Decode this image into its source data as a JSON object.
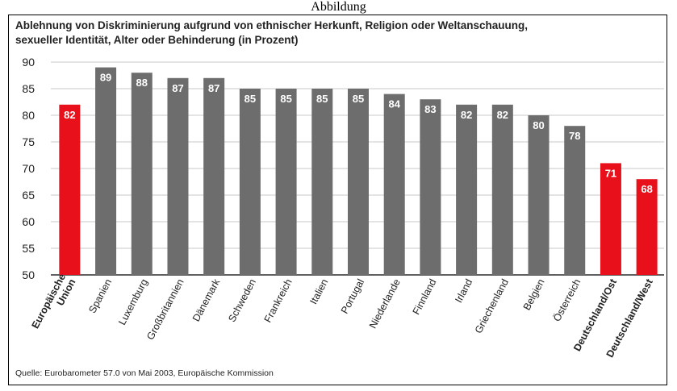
{
  "page": {
    "caption": "Abbildung"
  },
  "chart_data": {
    "type": "bar",
    "title_lines": [
      "Ablehnung von Diskriminierung aufgrund von ethnischer Herkunft, Religion oder Weltanschauung,",
      "sexueller Identität, Alter oder Behinderung (in Prozent)"
    ],
    "categories": [
      "Europäische Union",
      "Spanien",
      "Luxemburg",
      "Großbritannien",
      "Dänemark",
      "Schweden",
      "Frankreich",
      "Italien",
      "Portugal",
      "Niederlande",
      "Finnland",
      "Irland",
      "Griechenland",
      "Belgien",
      "Österreich",
      "Deutschland/Ost",
      "Deutschland/West"
    ],
    "category_lines": [
      [
        "Europäische",
        "Union"
      ],
      [
        "Spanien"
      ],
      [
        "Luxemburg"
      ],
      [
        "Großbritannien"
      ],
      [
        "Dänemark"
      ],
      [
        "Schweden"
      ],
      [
        "Frankreich"
      ],
      [
        "Italien"
      ],
      [
        "Portugal"
      ],
      [
        "Niederlande"
      ],
      [
        "Finnland"
      ],
      [
        "Irland"
      ],
      [
        "Griechenland"
      ],
      [
        "Belgien"
      ],
      [
        "Österreich"
      ],
      [
        "Deutschland/Ost"
      ],
      [
        "Deutschland/West"
      ]
    ],
    "values": [
      82,
      89,
      88,
      87,
      87,
      85,
      85,
      85,
      85,
      84,
      83,
      82,
      82,
      80,
      78,
      71,
      68
    ],
    "highlight": [
      true,
      false,
      false,
      false,
      false,
      false,
      false,
      false,
      false,
      false,
      false,
      false,
      false,
      false,
      false,
      true,
      true
    ],
    "bold_labels": [
      true,
      false,
      false,
      false,
      false,
      false,
      false,
      false,
      false,
      false,
      false,
      false,
      false,
      false,
      false,
      true,
      true
    ],
    "ylim": [
      50,
      90
    ],
    "yticks": [
      50,
      55,
      60,
      65,
      70,
      75,
      80,
      85,
      90
    ],
    "grid": true,
    "colors": {
      "bar": "#6d6d6d",
      "highlight": "#e8111b",
      "grid": "#c9c9c9",
      "value_text": "#ffffff"
    },
    "source": "Quelle: Eurobarometer 57.0 von Mai 2003, Europäische Kommission"
  }
}
